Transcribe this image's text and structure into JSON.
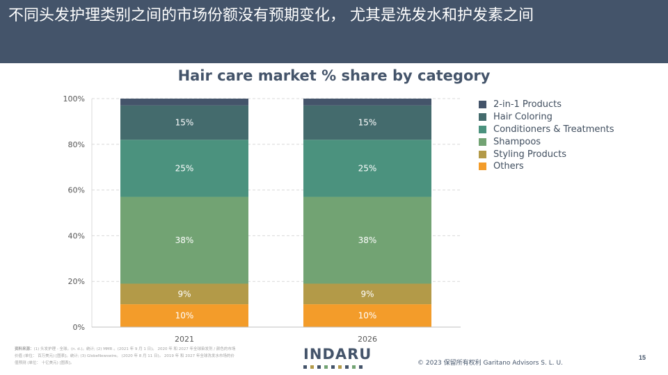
{
  "slide": {
    "title": "不同头发护理类别之间的市场份额没有预期变化， 尤其是洗发水和护发素之间",
    "page_number": "15",
    "copyright": "© 2023 保留所有权利 Garitano Advisors S. L. U.",
    "source_label": "资料来源：",
    "source_text": "(1) 头发护理 - 全球。(n. d.)。统计; (2) MMR 。(2021 年 9 月 1 日)。 2020 年 和 2027 年全球染发剂 / 颜色的市场价值 (单位： 百万美元) [图表]。统计; (3) GlobeNewswire。 (2020 年 8 月 11 日)。 2019 年 和 2027 年全球洗发水市场的价值预测 (单位： 十亿美元) [图表]。",
    "logo_text": "INDARU",
    "header_color": "#44546a"
  },
  "chart_data": {
    "type": "bar",
    "stacked": true,
    "title": "Hair care market % share by category",
    "categories": [
      "2021",
      "2026"
    ],
    "ylim": [
      0,
      100
    ],
    "yticks": [
      "0%",
      "20%",
      "40%",
      "60%",
      "80%",
      "100%"
    ],
    "grid": true,
    "legend_position": "right",
    "series": [
      {
        "name": "Others",
        "values": [
          10,
          10
        ],
        "labels": [
          "10%",
          "10%"
        ],
        "color": "#f39c2a"
      },
      {
        "name": "Styling Products",
        "values": [
          9,
          9
        ],
        "labels": [
          "9%",
          "9%"
        ],
        "color": "#b39a48"
      },
      {
        "name": "Shampoos",
        "values": [
          38,
          38
        ],
        "labels": [
          "38%",
          "38%"
        ],
        "color": "#72a373"
      },
      {
        "name": "Conditioners & Treatments",
        "values": [
          25,
          25
        ],
        "labels": [
          "25%",
          "25%"
        ],
        "color": "#4b927e"
      },
      {
        "name": "Hair Coloring",
        "values": [
          15,
          15
        ],
        "labels": [
          "15%",
          "15%"
        ],
        "color": "#446b6d"
      },
      {
        "name": "2-in-1 Products",
        "values": [
          3,
          3
        ],
        "labels": [
          "",
          ""
        ],
        "color": "#44546a"
      }
    ],
    "legend_order": [
      "2-in-1 Products",
      "Hair Coloring",
      "Conditioners & Treatments",
      "Shampoos",
      "Styling Products",
      "Others"
    ]
  }
}
